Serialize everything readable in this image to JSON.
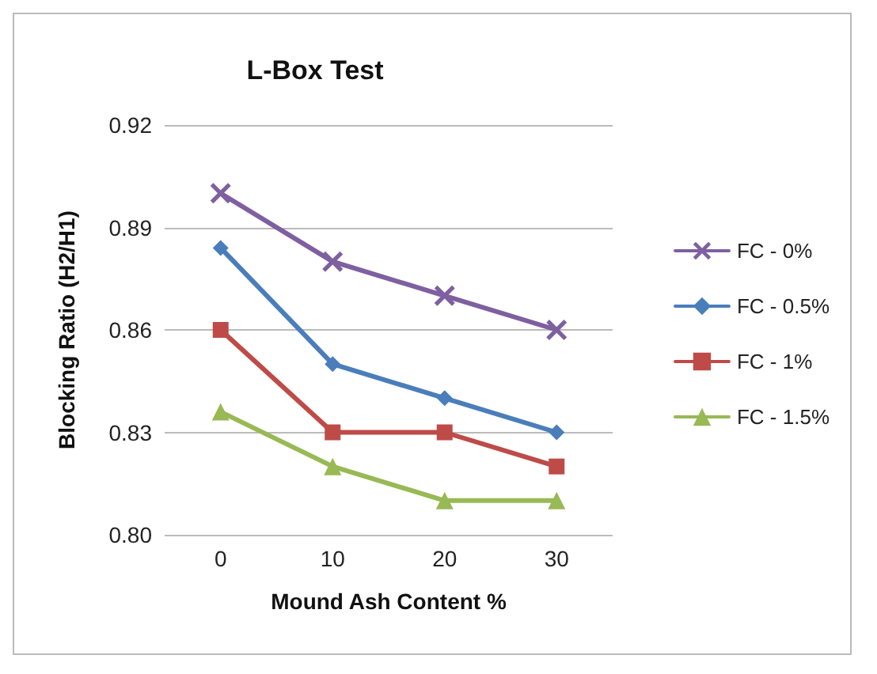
{
  "chart_data": {
    "type": "line",
    "title": "L-Box Test",
    "xlabel": "Mound Ash Content %",
    "ylabel": "Blocking Ratio (H2/H1)",
    "categories": [
      "0",
      "10",
      "20",
      "30"
    ],
    "series": [
      {
        "name": "FC - 0%",
        "color": "#7e60a0",
        "marker": "cross",
        "values": [
          0.9,
          0.88,
          0.87,
          0.86
        ]
      },
      {
        "name": "FC - 0.5%",
        "color": "#4a7ebb",
        "marker": "diamond",
        "values": [
          0.884,
          0.85,
          0.84,
          0.83
        ]
      },
      {
        "name": "FC - 1%",
        "color": "#be4b48",
        "marker": "square",
        "values": [
          0.86,
          0.83,
          0.83,
          0.82
        ]
      },
      {
        "name": "FC - 1.5%",
        "color": "#98b954",
        "marker": "triangle",
        "values": [
          0.836,
          0.82,
          0.81,
          0.81
        ]
      }
    ],
    "ylim": [
      0.8,
      0.92
    ],
    "yticks": [
      {
        "value": 0.8,
        "label": "0.80"
      },
      0.83,
      0.86,
      0.89,
      0.92
    ],
    "grid": "y",
    "legend": "right",
    "line_style": "solid"
  }
}
